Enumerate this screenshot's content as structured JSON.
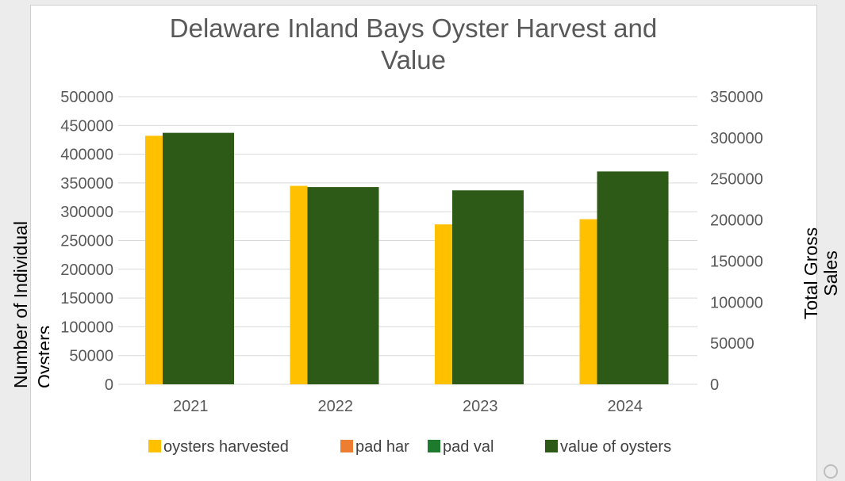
{
  "chart_data": {
    "type": "bar",
    "title_lines": [
      "Delaware Inland Bays Oyster Harvest and",
      "Value"
    ],
    "categories": [
      "2021",
      "2022",
      "2023",
      "2024"
    ],
    "ylabel_lines": [
      "Number of Individual",
      "Oysters"
    ],
    "y2label_lines": [
      "Total Gross",
      "Sales"
    ],
    "ylim": [
      0,
      500000
    ],
    "y2lim": [
      0,
      350000
    ],
    "y_ticks": [
      "0",
      "50000",
      "100000",
      "150000",
      "200000",
      "250000",
      "300000",
      "350000",
      "400000",
      "450000",
      "500000"
    ],
    "y2_ticks": [
      "0",
      "50000",
      "100000",
      "150000",
      "200000",
      "250000",
      "300000",
      "350000"
    ],
    "grid": true,
    "legend_position": "bottom",
    "series": [
      {
        "name": "oysters harvested",
        "axis": "left",
        "color": "#FFC000",
        "values": [
          432000,
          345000,
          278000,
          287000
        ]
      },
      {
        "name": "pad har",
        "axis": "left",
        "color": "#ED7D31",
        "values": [
          0,
          0,
          0,
          0
        ]
      },
      {
        "name": "pad val",
        "axis": "right",
        "color": "#1E7B2E",
        "values": [
          0,
          0,
          0,
          0
        ]
      },
      {
        "name": "value of oysters",
        "axis": "right",
        "color": "#2D5A16",
        "values": [
          306000,
          240000,
          236000,
          259000
        ]
      }
    ]
  }
}
